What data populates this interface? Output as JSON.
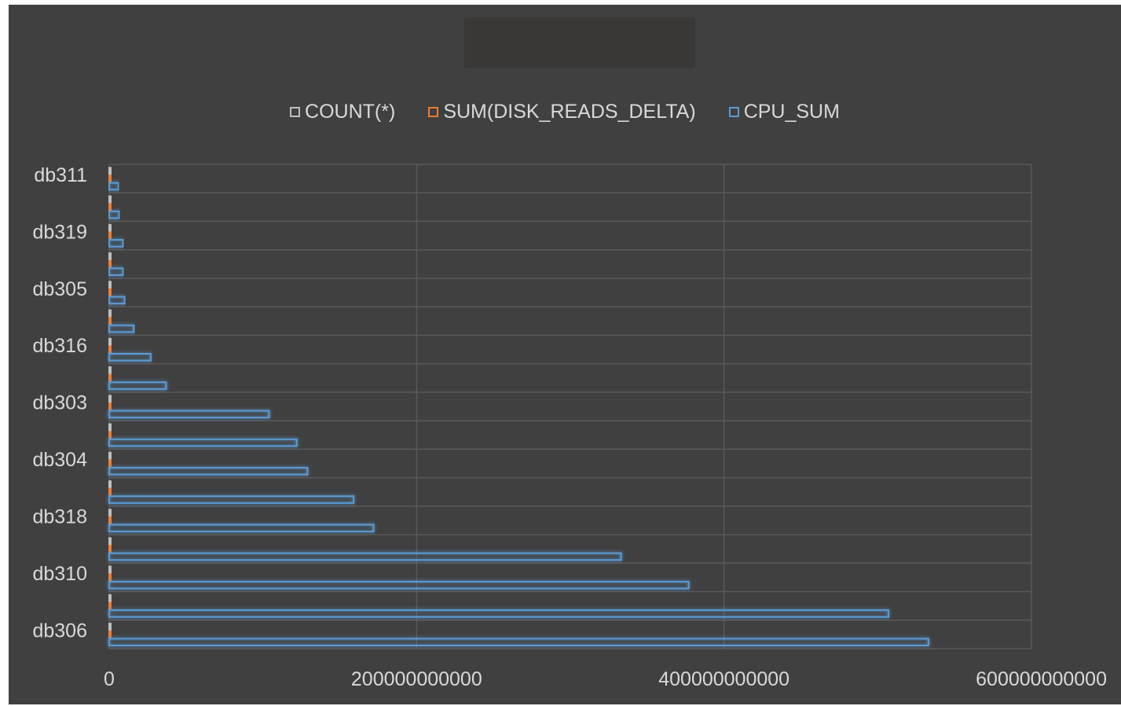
{
  "legend": {
    "count_label": "COUNT(*)",
    "disk_label": "SUM(DISK_READS_DELTA)",
    "cpu_label": "CPU_SUM"
  },
  "colors": {
    "background": "#404040",
    "gridline": "#595959",
    "count_series": "#bfbfbf",
    "disk_series": "#ed7d31",
    "cpu_series": "#5b9bd5",
    "text": "#d9d9d9"
  },
  "chart_data": {
    "type": "bar",
    "orientation": "horizontal",
    "title": "",
    "xlabel": "",
    "ylabel": "",
    "xlim": [
      0,
      600000000000
    ],
    "x_ticks": [
      "0",
      "200000000000",
      "400000000000",
      "600000000000"
    ],
    "grid": true,
    "legend_position": "top",
    "category_count": 17,
    "labeled_categories": [
      "db311",
      "db319",
      "db305",
      "db316",
      "db303",
      "db304",
      "db318",
      "db310",
      "db306"
    ],
    "categories_top_to_bottom": [
      "db311",
      "",
      "db319",
      "",
      "db305",
      "",
      "db316",
      "",
      "db303",
      "",
      "db304",
      "",
      "db318",
      "",
      "db310",
      "",
      "db306"
    ],
    "series": [
      {
        "name": "COUNT(*)",
        "values_top_to_bottom": [
          0,
          0,
          0,
          0,
          0,
          0,
          0,
          0,
          0,
          0,
          0,
          0,
          0,
          0,
          0,
          0,
          0
        ]
      },
      {
        "name": "SUM(DISK_READS_DELTA)",
        "values_top_to_bottom": [
          1000000000,
          1000000000,
          1000000000,
          1000000000,
          1000000000,
          1000000000,
          1000000000,
          1000000000,
          1000000000,
          1000000000,
          1000000000,
          1000000000,
          1000000000,
          1000000000,
          1000000000,
          1000000000,
          1000000000
        ]
      },
      {
        "name": "CPU_SUM",
        "values_top_to_bottom": [
          6000000000,
          6500000000,
          9000000000,
          9000000000,
          10000000000,
          16000000000,
          27000000000,
          37000000000,
          104000000000,
          122000000000,
          129000000000,
          159000000000,
          172000000000,
          333000000000,
          377000000000,
          507000000000,
          533000000000
        ]
      }
    ]
  }
}
